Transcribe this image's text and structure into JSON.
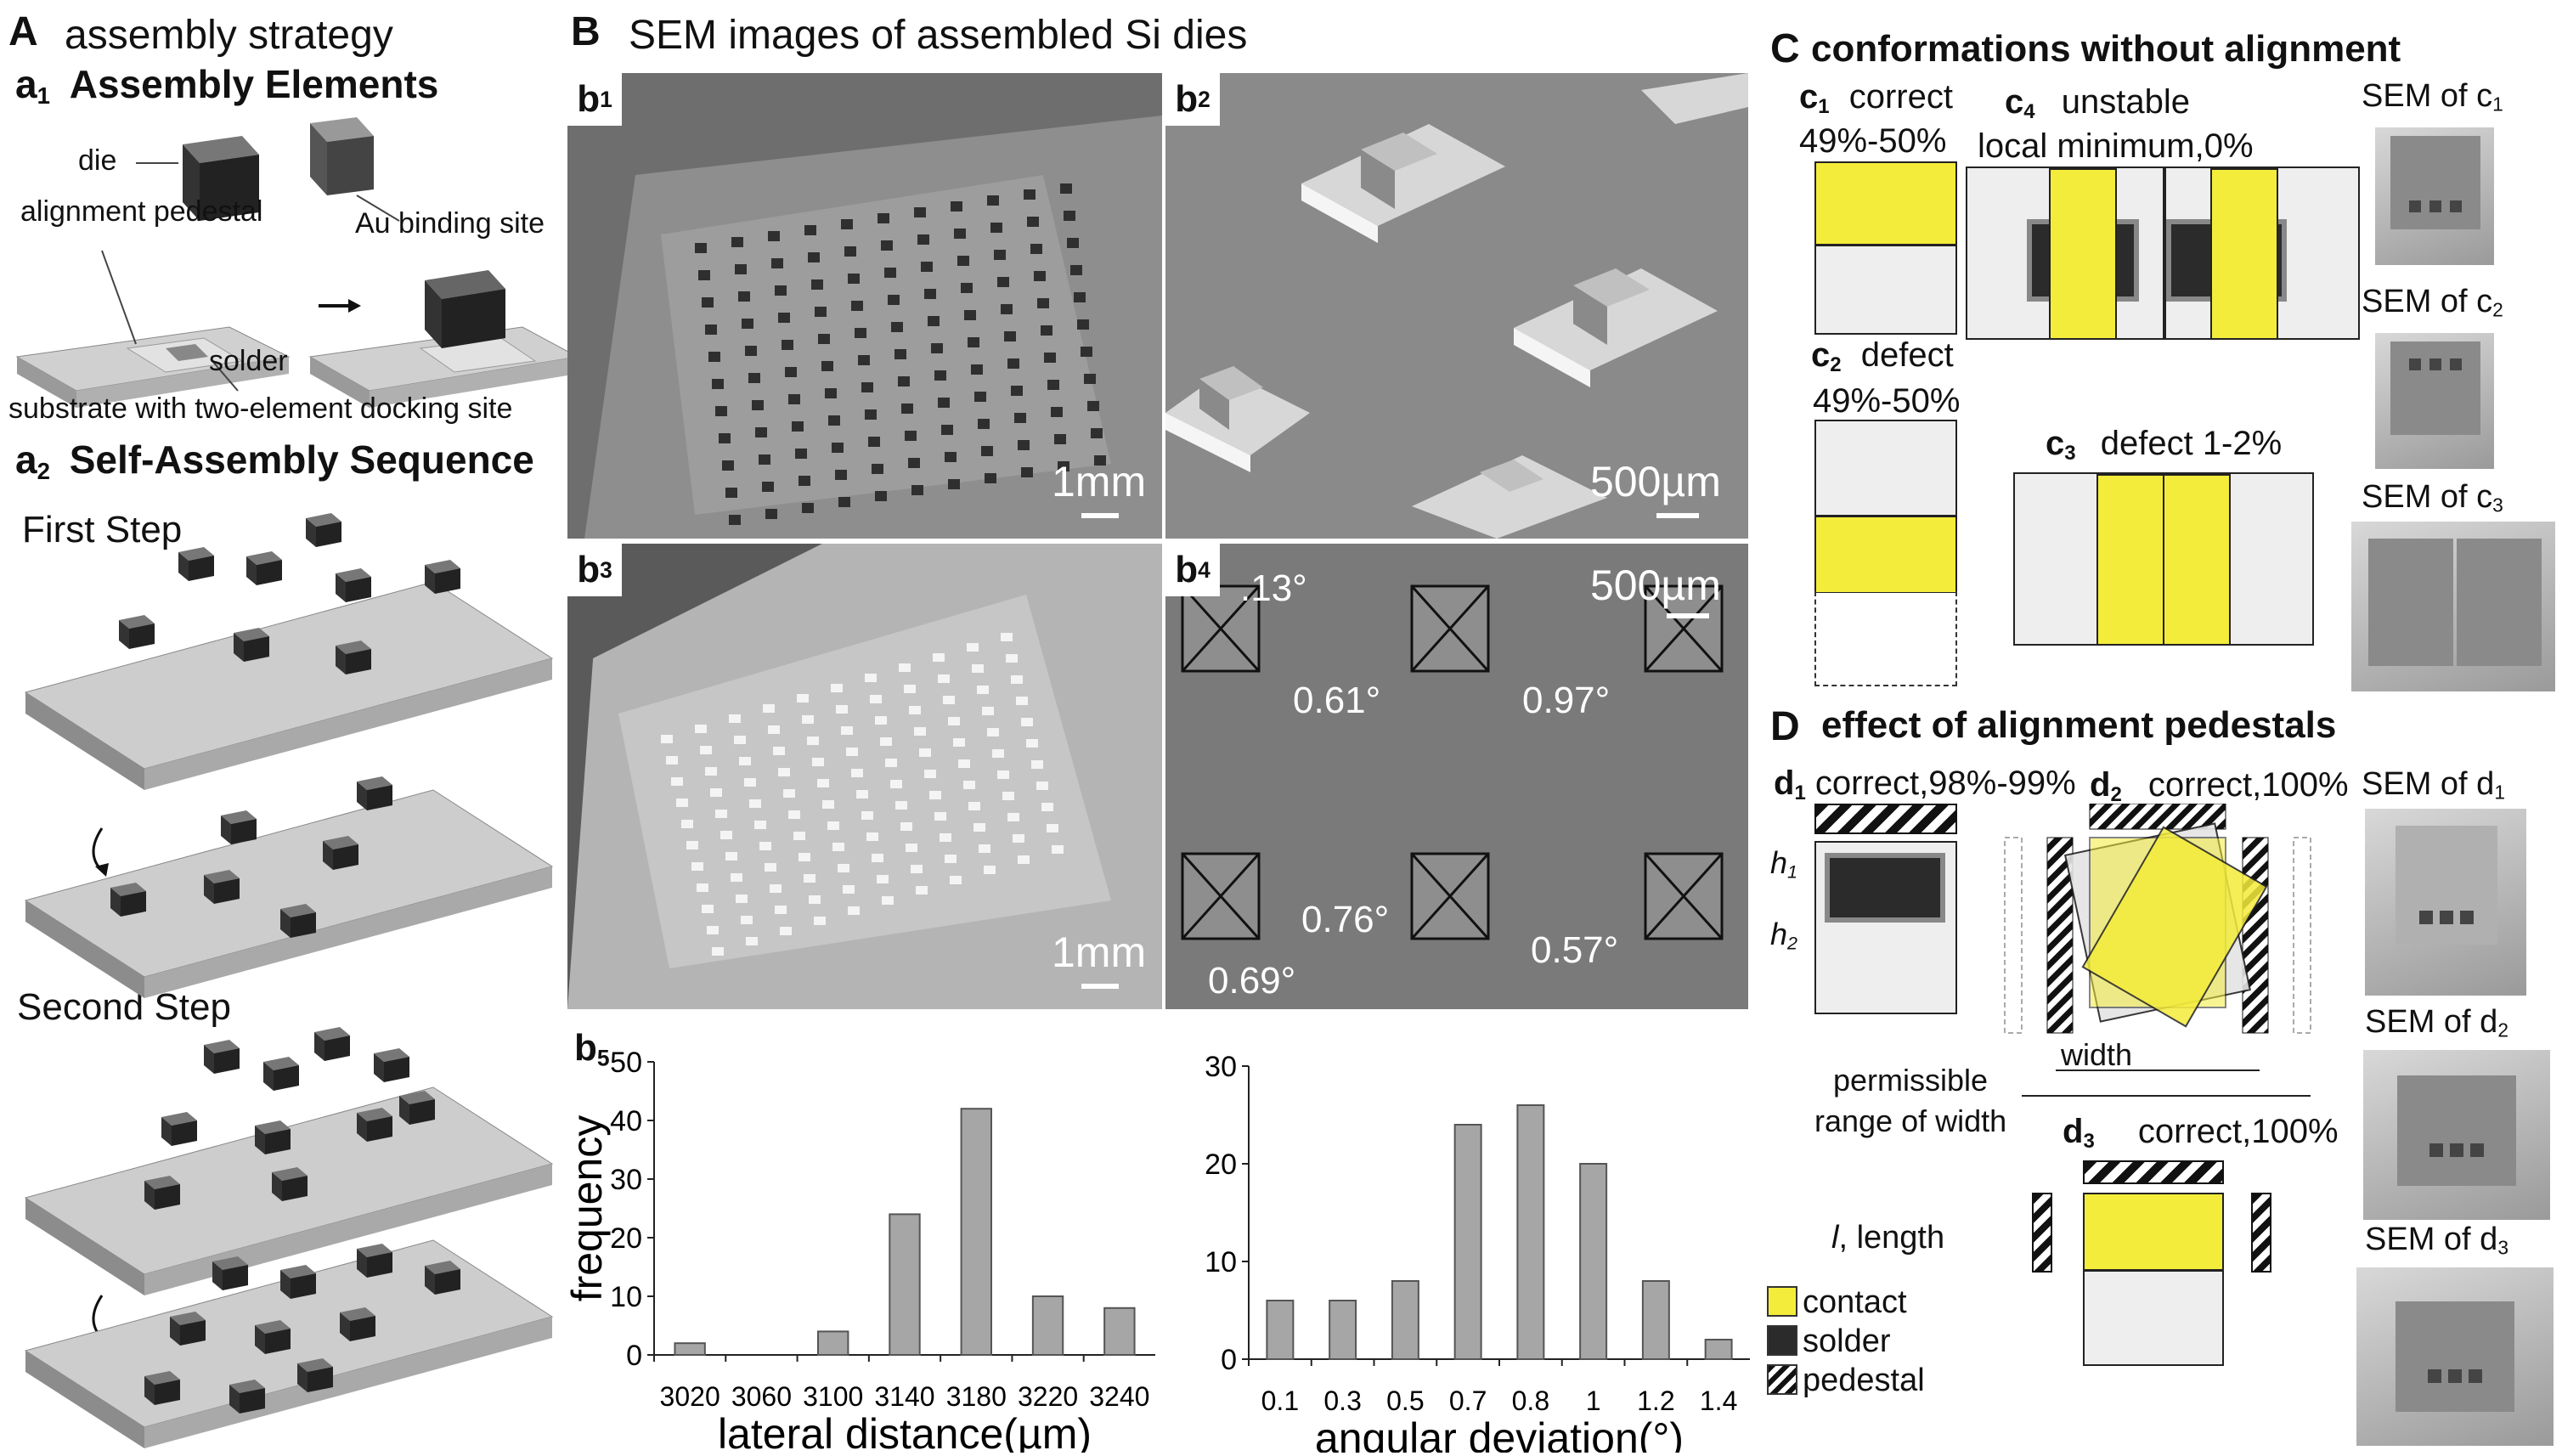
{
  "panelA": {
    "letter": "A",
    "title": "assembly strategy",
    "a1": {
      "prefix": "a",
      "sub": "1",
      "title": "Assembly Elements"
    },
    "labels": {
      "die": "die",
      "pedestal": "alignment pedestal",
      "au": "Au binding site",
      "solder": "solder",
      "substrate": "substrate with two-element docking site"
    },
    "a2": {
      "prefix": "a",
      "sub": "2",
      "title": "Self-Assembly Sequence"
    },
    "first_step": "First Step",
    "second_step": "Second Step"
  },
  "panelB": {
    "letter": "B",
    "title": "SEM images of assembled Si dies",
    "b1": {
      "prefix": "b",
      "sub": "1",
      "scale": "1mm"
    },
    "b2": {
      "prefix": "b",
      "sub": "2",
      "scale": "500µm"
    },
    "b3": {
      "prefix": "b",
      "sub": "3",
      "scale": "1mm"
    },
    "b4": {
      "prefix": "b",
      "sub": "4",
      "scale": "500µm",
      "angles": [
        ".13°",
        "0.61°",
        "0.97°",
        "0.76°",
        "0.57°",
        "0.69°"
      ]
    },
    "b5": {
      "prefix": "b",
      "sub": "5"
    }
  },
  "chart_data": [
    {
      "type": "bar",
      "categories": [
        "3020",
        "3060",
        "3100",
        "3140",
        "3180",
        "3220",
        "3240"
      ],
      "values": [
        2,
        0,
        4,
        24,
        42,
        10,
        8
      ],
      "xlabel": "lateral distance(µm)",
      "ylabel": "frequency",
      "ylim": [
        0,
        50
      ],
      "yticks": [
        "0",
        "10",
        "20",
        "30",
        "40",
        "50"
      ],
      "bar_color": "#a6a6a6"
    },
    {
      "type": "bar",
      "categories": [
        "0.1",
        "0.3",
        "0.5",
        "0.7",
        "0.8",
        "1",
        "1.2",
        "1.4"
      ],
      "values": [
        6,
        6,
        8,
        24,
        26,
        20,
        8,
        2
      ],
      "xlabel": "angular deviation(°)",
      "ylabel": "",
      "ylim": [
        0,
        30
      ],
      "yticks": [
        "0",
        "10",
        "20",
        "30"
      ],
      "bar_color": "#a6a6a6"
    }
  ],
  "legend": {
    "contact": "contact",
    "solder": "solder",
    "pedestal": "pedestal",
    "contact_color": "#f4ec3a",
    "solder_color": "#2b2b2b"
  },
  "panelC": {
    "letter": "C",
    "title": "conformations without alignment",
    "c1": {
      "prefix": "c",
      "sub": "1",
      "label": "correct",
      "pct": "49%-50%"
    },
    "c4": {
      "prefix": "c",
      "sub": "4",
      "label": "unstable",
      "label2": "local minimum,0%"
    },
    "c2": {
      "prefix": "c",
      "sub": "2",
      "label": "defect",
      "pct": "49%-50%"
    },
    "c3": {
      "prefix": "c",
      "sub": "3",
      "label": "defect 1-2%"
    },
    "sem_c1": {
      "prefix": "SEM of",
      "p": "c",
      "sub": "1"
    },
    "sem_c2": {
      "prefix": "SEM of",
      "p": "c",
      "sub": "2"
    },
    "sem_c3": {
      "prefix": "SEM of",
      "p": "c",
      "sub": "3"
    }
  },
  "panelD": {
    "letter": "D",
    "title": "effect of alignment pedestals",
    "d1": {
      "prefix": "d",
      "sub": "1",
      "label": "correct,98%-99%"
    },
    "d2": {
      "prefix": "d",
      "sub": "2",
      "label": "correct,100%"
    },
    "d3": {
      "prefix": "d",
      "sub": "3",
      "label": "correct,100%"
    },
    "h1": "h",
    "h1sub": "1",
    "h2": "h",
    "h2sub": "2",
    "width": "width",
    "permissible": "permissible",
    "range": "range of width",
    "length_i": "l",
    "length": ", length",
    "sem_d1": {
      "prefix": "SEM of",
      "p": "d",
      "sub": "1"
    },
    "sem_d2": {
      "prefix": "SEM of",
      "p": "d",
      "sub": "2"
    },
    "sem_d3": {
      "prefix": "SEM of",
      "p": "d",
      "sub": "3"
    }
  }
}
